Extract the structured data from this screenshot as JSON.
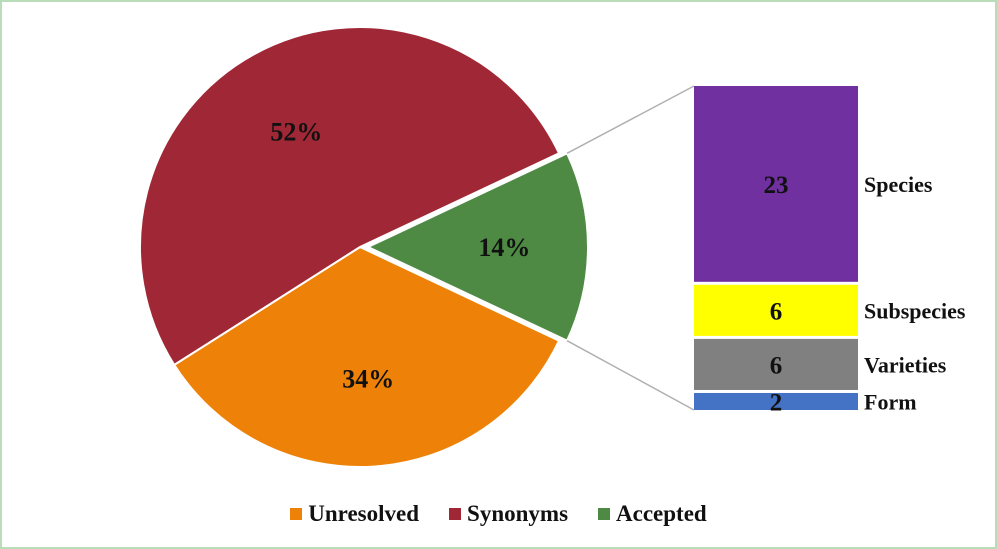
{
  "chart_data": [
    {
      "type": "pie",
      "categories": [
        "Unresolved",
        "Synonyms",
        "Accepted"
      ],
      "values": [
        34,
        52,
        14
      ],
      "data_labels": [
        "34%",
        "52%",
        "14%"
      ],
      "colors": [
        "#ee8209",
        "#a02735",
        "#4e8a43"
      ],
      "legend": "bottom",
      "exploded_slice": "Accepted"
    },
    {
      "type": "bar",
      "stacked": true,
      "categories": [
        "Species",
        "Subspecies",
        "Varieties",
        "Form"
      ],
      "values": [
        23,
        6,
        6,
        2
      ],
      "data_labels": [
        "23",
        "6",
        "6",
        "2"
      ],
      "colors": [
        "#7030a0",
        "#ffff00",
        "#808080",
        "#4472c4"
      ],
      "breakdown_of": "Accepted"
    }
  ]
}
